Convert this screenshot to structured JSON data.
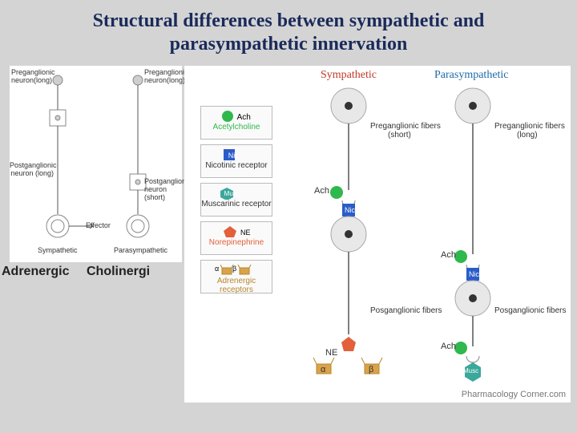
{
  "title_l1": "Structural differences between sympathetic and",
  "title_l2": "parasympathetic innervation",
  "left": {
    "pre_long": "Preganglionic\nneuron(long)",
    "pre_long_r": "Preganglionic\nneuron(long)",
    "post_long": "Postganglionic\nneuron (long)",
    "post_short": "Postganglionic\nneuron (short)",
    "effector": "Effector",
    "symp": "Sympathetic",
    "para": "Parasympathetic"
  },
  "outer": {
    "adrenergic": "Adrenergic",
    "cholinergic": "Cholinergi"
  },
  "right": {
    "symp": "Sympathetic",
    "para": "Parasympathetic",
    "pre_short": "Preganglionic fibers",
    "pre_short2": "(short)",
    "pre_long": "Preganglionic fibers",
    "pre_long2": "(long)",
    "post_fibers": "Posganglionic fibers",
    "ach": "Ach",
    "nic": "Nic",
    "ne": "NE",
    "alpha": "α",
    "beta": "β",
    "musc": "Musc",
    "credit": "Pharmacology Corner.com"
  },
  "legend": {
    "ach": "Ach",
    "ach_sub": "Acetylcholine",
    "nic": "Nic",
    "nic_sub": "Nicotinic receptor",
    "musc": "Musc",
    "musc_sub": "Muscarinic receptor",
    "ne": "NE",
    "ne_sub": "Norepinephrine",
    "ab_a": "α",
    "ab_b": "β",
    "ab_sub": "Adrenergic receptors"
  },
  "colors": {
    "ach": "#2fb84d",
    "nic": "#2a5cc9",
    "musc": "#3aa89b",
    "ne": "#e2603a",
    "adr": "#d9a34a",
    "symp_title": "#c0392b",
    "para_title": "#1e6aa8",
    "neuron_gray": "#cfcfcf",
    "neuron_stroke": "#888",
    "text": "#333"
  }
}
